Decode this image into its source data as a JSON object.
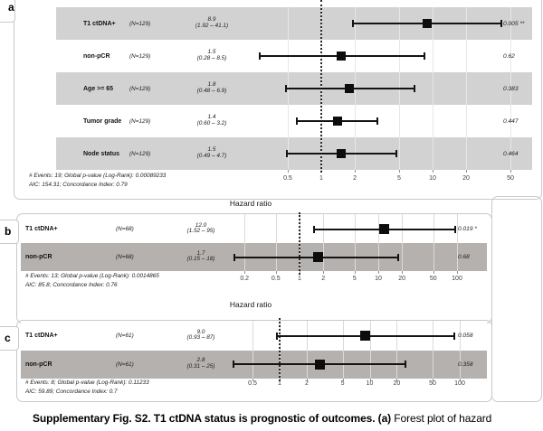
{
  "figure": {
    "caption_bold": "Supplementary Fig. S2. T1 ctDNA status is prognostic of outcomes. (a)",
    "caption_regular": " Forest plot of hazard"
  },
  "colors": {
    "band_gray_panel_a": "#d2d2d2",
    "band_gray_panel_bc": "#b5b1ae",
    "marker_black": "#0d0d0d",
    "card_border": "#c9c9c9"
  },
  "chart_data": [
    {
      "panel": "a",
      "type": "forest",
      "title": "",
      "xscale": "log",
      "xticks": [
        0.5,
        1,
        2,
        5,
        10,
        20,
        50
      ],
      "reference_line": 1,
      "rows": [
        {
          "label": "T1 ctDNA+",
          "n": "(N=129)",
          "hr": 8.9,
          "hr_text": "8.9",
          "ci_low": 1.92,
          "ci_high": 41.1,
          "ci_text": "(1.92 – 41.1)",
          "p": "0.005 **"
        },
        {
          "label": "non-pCR",
          "n": "(N=129)",
          "hr": 1.5,
          "hr_text": "1.5",
          "ci_low": 0.28,
          "ci_high": 8.5,
          "ci_text": "(0.28 – 8.5)",
          "p": "0.62"
        },
        {
          "label": "Age >= 65",
          "n": "(N=129)",
          "hr": 1.8,
          "hr_text": "1.8",
          "ci_low": 0.48,
          "ci_high": 6.9,
          "ci_text": "(0.48 – 6.9)",
          "p": "0.383"
        },
        {
          "label": "Tumor grade",
          "n": "(N=129)",
          "hr": 1.4,
          "hr_text": "1.4",
          "ci_low": 0.6,
          "ci_high": 3.2,
          "ci_text": "(0.60 – 3.2)",
          "p": "0.447"
        },
        {
          "label": "Node status",
          "n": "(N=129)",
          "hr": 1.5,
          "hr_text": "1.5",
          "ci_low": 0.49,
          "ci_high": 4.7,
          "ci_text": "(0.49 – 4.7)",
          "p": "0.464"
        }
      ],
      "footer": [
        "# Events: 19; Global p-value (Log-Rank): 0.00089233",
        "AIC: 154.31; Concordance Index: 0.79"
      ]
    },
    {
      "panel": "b",
      "type": "forest",
      "title": "Hazard ratio",
      "xscale": "log",
      "xticks": [
        0.2,
        0.5,
        1,
        2,
        5,
        10,
        20,
        50,
        100
      ],
      "reference_line": 1,
      "rows": [
        {
          "label": "T1 ctDNA+",
          "n": "(N=68)",
          "hr": 12.0,
          "hr_text": "12.0",
          "ci_low": 1.52,
          "ci_high": 95,
          "ci_text": "(1.52 – 95)",
          "p": "0.019 *"
        },
        {
          "label": "non-pCR",
          "n": "(N=68)",
          "hr": 1.7,
          "hr_text": "1.7",
          "ci_low": 0.15,
          "ci_high": 18,
          "ci_text": "(0.15 – 18)",
          "p": "0.68"
        }
      ],
      "footer": [
        "# Events: 13; Global p-value (Log-Rank): 0.0014865",
        "AIC: 85.8; Concordance Index: 0.76"
      ]
    },
    {
      "panel": "c",
      "type": "forest",
      "title": "Hazard ratio",
      "xscale": "log",
      "xticks": [
        0.5,
        1,
        2,
        5,
        10,
        20,
        50,
        100
      ],
      "reference_line": 1,
      "rows": [
        {
          "label": "T1 ctDNA+",
          "n": "(N=61)",
          "hr": 9.0,
          "hr_text": "9.0",
          "ci_low": 0.93,
          "ci_high": 87,
          "ci_text": "(0.93 – 87)",
          "p": "0.058"
        },
        {
          "label": "non-pCR",
          "n": "(N=61)",
          "hr": 2.8,
          "hr_text": "2.8",
          "ci_low": 0.31,
          "ci_high": 25,
          "ci_text": "(0.31 – 25)",
          "p": "0.358"
        }
      ],
      "footer": [
        "# Events: 8; Global p-value (Log-Rank): 0.11233",
        "AIC: 59.89; Concordance Index: 0.7"
      ]
    }
  ]
}
